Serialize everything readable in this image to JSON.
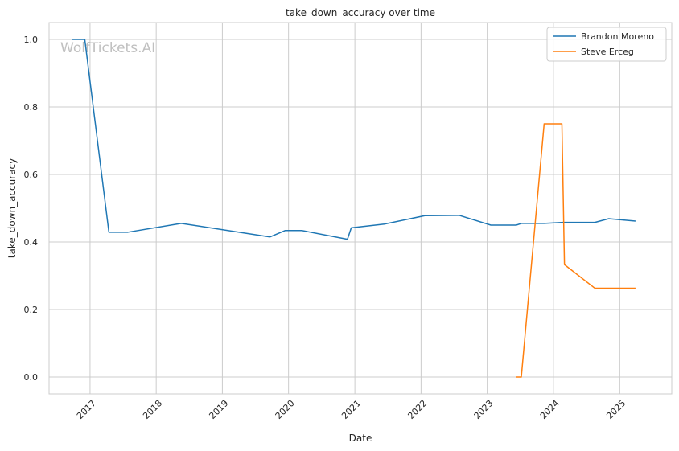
{
  "chart_data": {
    "type": "line",
    "title": "take_down_accuracy over time",
    "xlabel": "Date",
    "ylabel": "take_down_accuracy",
    "watermark": "WolfTickets.AI",
    "xlim": [
      "2016-05-20",
      "2025-10-15"
    ],
    "ylim": [
      -0.05,
      1.05
    ],
    "x_ticks": [
      {
        "date": "2017-01-01",
        "label": "2017"
      },
      {
        "date": "2018-01-01",
        "label": "2018"
      },
      {
        "date": "2019-01-01",
        "label": "2019"
      },
      {
        "date": "2020-01-01",
        "label": "2020"
      },
      {
        "date": "2021-01-01",
        "label": "2021"
      },
      {
        "date": "2022-01-01",
        "label": "2022"
      },
      {
        "date": "2023-01-01",
        "label": "2023"
      },
      {
        "date": "2024-01-01",
        "label": "2024"
      },
      {
        "date": "2025-01-01",
        "label": "2025"
      }
    ],
    "y_ticks": [
      {
        "value": 0.0,
        "label": "0.0"
      },
      {
        "value": 0.2,
        "label": "0.2"
      },
      {
        "value": 0.4,
        "label": "0.4"
      },
      {
        "value": 0.6,
        "label": "0.6"
      },
      {
        "value": 0.8,
        "label": "0.8"
      },
      {
        "value": 1.0,
        "label": "1.0"
      }
    ],
    "grid": true,
    "legend_position": "top-right",
    "series": [
      {
        "name": "Brandon Moreno",
        "color": "#1f77b4",
        "points": [
          {
            "x": "2016-09-24",
            "y": 1.0
          },
          {
            "x": "2016-12-03",
            "y": 1.0
          },
          {
            "x": "2017-04-15",
            "y": 0.429
          },
          {
            "x": "2017-07-29",
            "y": 0.429
          },
          {
            "x": "2018-05-19",
            "y": 0.455
          },
          {
            "x": "2019-09-21",
            "y": 0.415
          },
          {
            "x": "2019-12-14",
            "y": 0.434
          },
          {
            "x": "2020-03-14",
            "y": 0.434
          },
          {
            "x": "2020-11-21",
            "y": 0.408
          },
          {
            "x": "2020-12-12",
            "y": 0.442
          },
          {
            "x": "2021-06-12",
            "y": 0.453
          },
          {
            "x": "2022-01-22",
            "y": 0.478
          },
          {
            "x": "2022-07-30",
            "y": 0.479
          },
          {
            "x": "2023-01-21",
            "y": 0.45
          },
          {
            "x": "2023-06-10",
            "y": 0.45
          },
          {
            "x": "2023-07-08",
            "y": 0.455
          },
          {
            "x": "2023-11-11",
            "y": 0.455
          },
          {
            "x": "2024-02-24",
            "y": 0.458
          },
          {
            "x": "2024-08-17",
            "y": 0.458
          },
          {
            "x": "2024-11-02",
            "y": 0.469
          },
          {
            "x": "2025-03-29",
            "y": 0.462
          }
        ]
      },
      {
        "name": "Steve Erceg",
        "color": "#ff7f0e",
        "points": [
          {
            "x": "2023-06-10",
            "y": 0.0
          },
          {
            "x": "2023-07-08",
            "y": 0.0
          },
          {
            "x": "2023-11-11",
            "y": 0.75
          },
          {
            "x": "2024-02-17",
            "y": 0.75
          },
          {
            "x": "2024-03-02",
            "y": 0.333
          },
          {
            "x": "2024-08-17",
            "y": 0.263
          },
          {
            "x": "2025-03-29",
            "y": 0.263
          }
        ]
      }
    ]
  }
}
